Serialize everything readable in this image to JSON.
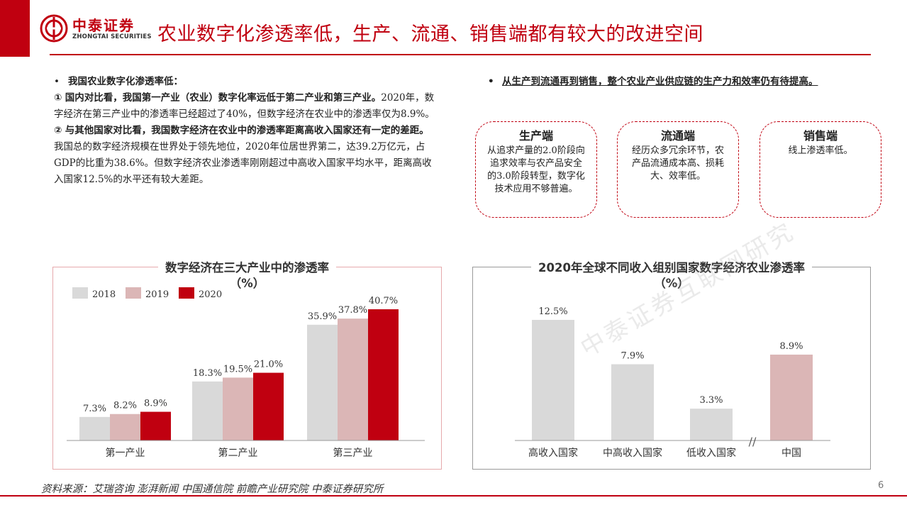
{
  "header": {
    "logo_cn": "中泰证券",
    "logo_en": "ZHONGTAI SECURITIES",
    "title": "农业数字化渗透率低，生产、流通、销售端都有较大的改进空间",
    "brand_color": "#c00010"
  },
  "left": {
    "bullet": "•",
    "heading": "我国农业数字化渗透率低：",
    "p1_num": "①",
    "p1_bold": "国内对比看，我国第一产业（农业）数字化率远低于第二产业和第三产业。",
    "p1_text": "2020年，数字经济在第三产业中的渗透率已经超过了40%，但数字经济在农业中的渗透率仅为8.9%。",
    "p2_num": "②",
    "p2_bold": "与其他国家对比看，我国数字经济在农业中的渗透率距离高收入国家还有一定的差距。",
    "p2_text": "我国总的数字经济规模在世界处于领先地位，2020年位居世界第二，达39.2万亿元，占GDP的比重为38.6%。但数字经济农业渗透率刚刚超过中高收入国家平均水平，距离高收入国家12.5%的水平还有较大差距。"
  },
  "right": {
    "bullet": "•",
    "heading": "从生产到流通再到销售，整个农业产业供应链的生产力和效率仍有待提高。",
    "cards": [
      {
        "title": "生产端",
        "body": "从追求产量的2.0阶段向追求效率与农产品安全的3.0阶段转型，数字化技术应用不够普遍。"
      },
      {
        "title": "流通端",
        "body": "经历众多冗余环节，农产品流通成本高、损耗大、效率低。"
      },
      {
        "title": "销售端",
        "body": "线上渗透率低。"
      }
    ]
  },
  "chart_data": [
    {
      "type": "bar",
      "title": "数字经济在三大产业中的渗透率",
      "subtitle": "（%）",
      "categories": [
        "第一产业",
        "第二产业",
        "第三产业"
      ],
      "series": [
        {
          "name": "2018",
          "values": [
            7.3,
            18.3,
            35.9
          ],
          "color": "#d9d9d9"
        },
        {
          "name": "2019",
          "values": [
            8.2,
            19.5,
            37.8
          ],
          "color": "#dbb6b6"
        },
        {
          "name": "2020",
          "values": [
            8.9,
            21.0,
            40.7
          ],
          "color": "#c00010"
        }
      ],
      "labels": [
        [
          "7.3%",
          "18.3%",
          "35.9%"
        ],
        [
          "8.2%",
          "19.5%",
          "37.8%"
        ],
        [
          "8.9%",
          "21.0%",
          "40.7%"
        ]
      ],
      "ylim": [
        0,
        44
      ],
      "legend": "top-left",
      "grid": false
    },
    {
      "type": "bar",
      "title": "2020年全球不同收入组别国家数字经济农业渗透率",
      "subtitle": "（%）",
      "categories": [
        "高收入国家",
        "中高收入国家",
        "低收入国家",
        "中国"
      ],
      "values": [
        12.5,
        7.9,
        3.3,
        8.9
      ],
      "labels": [
        "12.5%",
        "7.9%",
        "3.3%",
        "8.9%"
      ],
      "colors": [
        "#d9d9d9",
        "#d9d9d9",
        "#d9d9d9",
        "#dbb6b6"
      ],
      "ylim": [
        0,
        13.6
      ],
      "axis_break": "//",
      "grid": false
    }
  ],
  "watermark": "中泰证券互联网研究",
  "footer": {
    "source": "资料来源：艾瑞咨询 澎湃新闻 中国通信院 前瞻产业研究院 中泰证券研究所",
    "page": "6"
  }
}
